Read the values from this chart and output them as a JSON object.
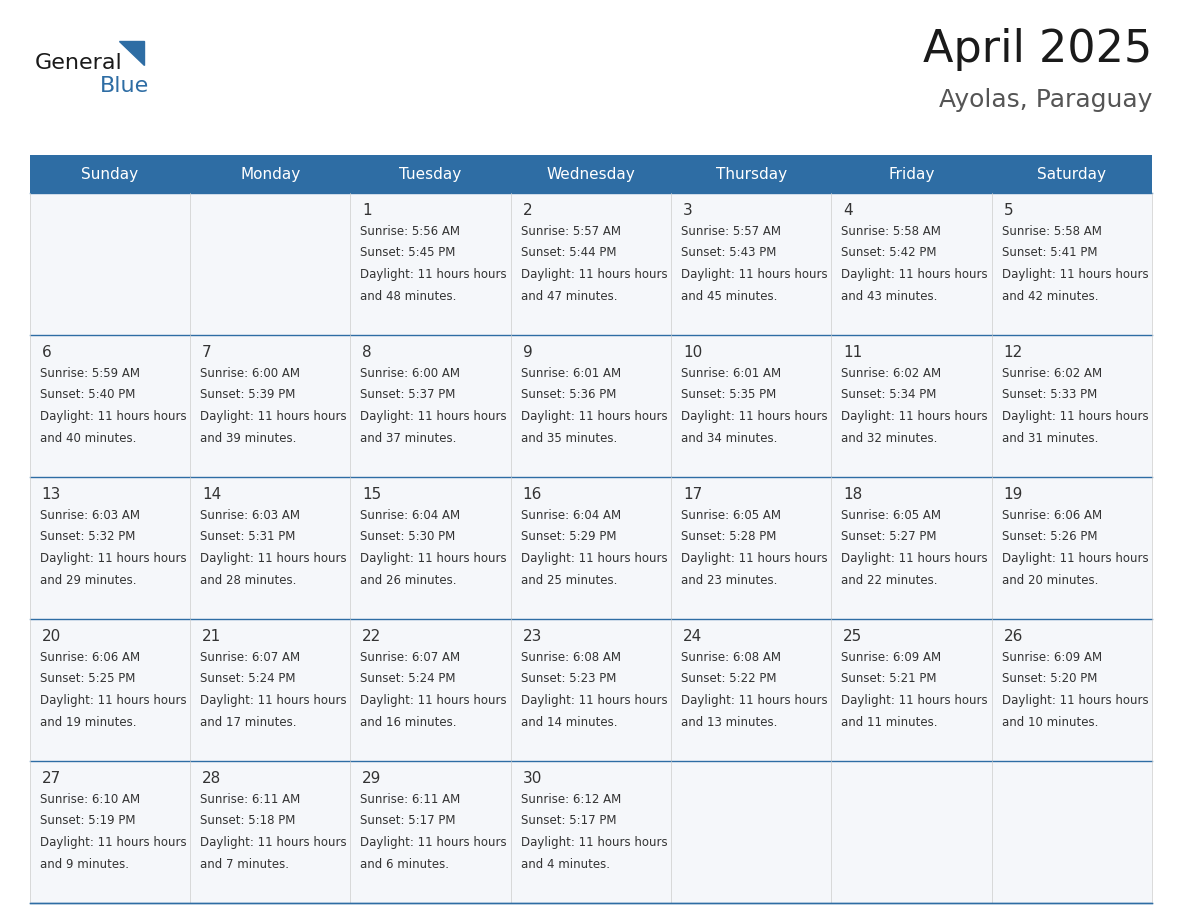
{
  "title": "April 2025",
  "subtitle": "Ayolas, Paraguay",
  "header_bg": "#2E6DA4",
  "header_text_color": "#FFFFFF",
  "cell_bg_light": "#F0F4F8",
  "cell_bg_white": "#FFFFFF",
  "border_color": "#2E6DA4",
  "text_color": "#333333",
  "days_of_week": [
    "Sunday",
    "Monday",
    "Tuesday",
    "Wednesday",
    "Thursday",
    "Friday",
    "Saturday"
  ],
  "weeks": [
    [
      {
        "day": "",
        "sunrise": "",
        "sunset": "",
        "daylight": ""
      },
      {
        "day": "",
        "sunrise": "",
        "sunset": "",
        "daylight": ""
      },
      {
        "day": "1",
        "sunrise": "5:56 AM",
        "sunset": "5:45 PM",
        "daylight": "11 hours and 48 minutes."
      },
      {
        "day": "2",
        "sunrise": "5:57 AM",
        "sunset": "5:44 PM",
        "daylight": "11 hours and 47 minutes."
      },
      {
        "day": "3",
        "sunrise": "5:57 AM",
        "sunset": "5:43 PM",
        "daylight": "11 hours and 45 minutes."
      },
      {
        "day": "4",
        "sunrise": "5:58 AM",
        "sunset": "5:42 PM",
        "daylight": "11 hours and 43 minutes."
      },
      {
        "day": "5",
        "sunrise": "5:58 AM",
        "sunset": "5:41 PM",
        "daylight": "11 hours and 42 minutes."
      }
    ],
    [
      {
        "day": "6",
        "sunrise": "5:59 AM",
        "sunset": "5:40 PM",
        "daylight": "11 hours and 40 minutes."
      },
      {
        "day": "7",
        "sunrise": "6:00 AM",
        "sunset": "5:39 PM",
        "daylight": "11 hours and 39 minutes."
      },
      {
        "day": "8",
        "sunrise": "6:00 AM",
        "sunset": "5:37 PM",
        "daylight": "11 hours and 37 minutes."
      },
      {
        "day": "9",
        "sunrise": "6:01 AM",
        "sunset": "5:36 PM",
        "daylight": "11 hours and 35 minutes."
      },
      {
        "day": "10",
        "sunrise": "6:01 AM",
        "sunset": "5:35 PM",
        "daylight": "11 hours and 34 minutes."
      },
      {
        "day": "11",
        "sunrise": "6:02 AM",
        "sunset": "5:34 PM",
        "daylight": "11 hours and 32 minutes."
      },
      {
        "day": "12",
        "sunrise": "6:02 AM",
        "sunset": "5:33 PM",
        "daylight": "11 hours and 31 minutes."
      }
    ],
    [
      {
        "day": "13",
        "sunrise": "6:03 AM",
        "sunset": "5:32 PM",
        "daylight": "11 hours and 29 minutes."
      },
      {
        "day": "14",
        "sunrise": "6:03 AM",
        "sunset": "5:31 PM",
        "daylight": "11 hours and 28 minutes."
      },
      {
        "day": "15",
        "sunrise": "6:04 AM",
        "sunset": "5:30 PM",
        "daylight": "11 hours and 26 minutes."
      },
      {
        "day": "16",
        "sunrise": "6:04 AM",
        "sunset": "5:29 PM",
        "daylight": "11 hours and 25 minutes."
      },
      {
        "day": "17",
        "sunrise": "6:05 AM",
        "sunset": "5:28 PM",
        "daylight": "11 hours and 23 minutes."
      },
      {
        "day": "18",
        "sunrise": "6:05 AM",
        "sunset": "5:27 PM",
        "daylight": "11 hours and 22 minutes."
      },
      {
        "day": "19",
        "sunrise": "6:06 AM",
        "sunset": "5:26 PM",
        "daylight": "11 hours and 20 minutes."
      }
    ],
    [
      {
        "day": "20",
        "sunrise": "6:06 AM",
        "sunset": "5:25 PM",
        "daylight": "11 hours and 19 minutes."
      },
      {
        "day": "21",
        "sunrise": "6:07 AM",
        "sunset": "5:24 PM",
        "daylight": "11 hours and 17 minutes."
      },
      {
        "day": "22",
        "sunrise": "6:07 AM",
        "sunset": "5:24 PM",
        "daylight": "11 hours and 16 minutes."
      },
      {
        "day": "23",
        "sunrise": "6:08 AM",
        "sunset": "5:23 PM",
        "daylight": "11 hours and 14 minutes."
      },
      {
        "day": "24",
        "sunrise": "6:08 AM",
        "sunset": "5:22 PM",
        "daylight": "11 hours and 13 minutes."
      },
      {
        "day": "25",
        "sunrise": "6:09 AM",
        "sunset": "5:21 PM",
        "daylight": "11 hours and 11 minutes."
      },
      {
        "day": "26",
        "sunrise": "6:09 AM",
        "sunset": "5:20 PM",
        "daylight": "11 hours and 10 minutes."
      }
    ],
    [
      {
        "day": "27",
        "sunrise": "6:10 AM",
        "sunset": "5:19 PM",
        "daylight": "11 hours and 9 minutes."
      },
      {
        "day": "28",
        "sunrise": "6:11 AM",
        "sunset": "5:18 PM",
        "daylight": "11 hours and 7 minutes."
      },
      {
        "day": "29",
        "sunrise": "6:11 AM",
        "sunset": "5:17 PM",
        "daylight": "11 hours and 6 minutes."
      },
      {
        "day": "30",
        "sunrise": "6:12 AM",
        "sunset": "5:17 PM",
        "daylight": "11 hours and 4 minutes."
      },
      {
        "day": "",
        "sunrise": "",
        "sunset": "",
        "daylight": ""
      },
      {
        "day": "",
        "sunrise": "",
        "sunset": "",
        "daylight": ""
      },
      {
        "day": "",
        "sunrise": "",
        "sunset": "",
        "daylight": ""
      }
    ]
  ],
  "logo_text_general": "General",
  "logo_text_blue": "Blue",
  "logo_color_general": "#1a1a1a",
  "logo_color_blue": "#2E6DA4",
  "logo_triangle_color": "#2E6DA4"
}
